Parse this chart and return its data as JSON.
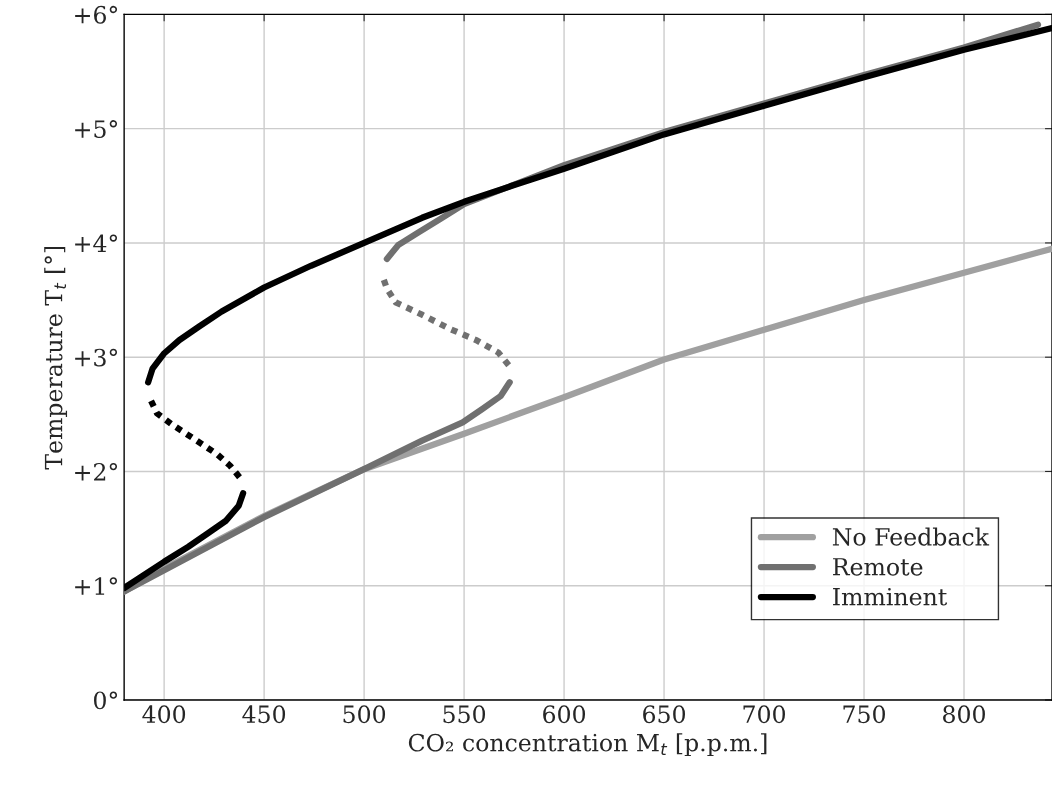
{
  "chart_data": {
    "type": "line",
    "xlabel": "CO₂ concentration M$_{t}$ [p.p.m.]",
    "ylabel": "Temperature T$_{t}$ [°]",
    "xlim": [
      380,
      844
    ],
    "ylim": [
      0,
      6
    ],
    "xticks": [
      400,
      450,
      500,
      550,
      600,
      650,
      700,
      750,
      800
    ],
    "yticks": [
      {
        "value": 0,
        "label": "0°"
      },
      {
        "value": 1,
        "label": "+1°"
      },
      {
        "value": 2,
        "label": "+2°"
      },
      {
        "value": 3,
        "label": "+3°"
      },
      {
        "value": 4,
        "label": "+4°"
      },
      {
        "value": 5,
        "label": "+5°"
      },
      {
        "value": 6,
        "label": "+6°"
      }
    ],
    "grid": true,
    "legend": "bottom right",
    "marker": "none",
    "series": [
      {
        "name": "No Feedback",
        "color": "#a0a0a0",
        "line_style": "solid",
        "x": [
          380,
          400,
          450,
          500,
          550,
          600,
          650,
          700,
          750,
          800,
          844
        ],
        "values": [
          0.95,
          1.15,
          1.61,
          2.02,
          2.33,
          2.65,
          2.98,
          3.24,
          3.5,
          3.74,
          3.95
        ]
      },
      {
        "name": "Remote",
        "color": "#707070",
        "line_style": "solid",
        "x": [
          380,
          450,
          500,
          529,
          549.3,
          559.4,
          568.3,
          572.8,
          null,
          511.4,
          517,
          527,
          538.2,
          550,
          600,
          650,
          700,
          750,
          800,
          837
        ],
        "values": [
          0.95,
          1.6,
          2.02,
          2.27,
          2.43,
          2.55,
          2.66,
          2.78,
          null,
          3.86,
          3.98,
          4.09,
          4.21,
          4.34,
          4.68,
          4.97,
          5.22,
          5.47,
          5.71,
          5.91
        ]
      },
      {
        "color": "#707070",
        "line_style": "dotted",
        "x": [
          572.3,
          567.2,
          556,
          542.6,
          529.2,
          515.8,
          511.4,
          509.2
        ],
        "values": [
          2.93,
          3.04,
          3.15,
          3.25,
          3.37,
          3.48,
          3.6,
          3.71
        ]
      },
      {
        "name": "Imminent",
        "color": "#000000",
        "line_style": "solid",
        "x": [
          380,
          400,
          412,
          422,
          431,
          437.3,
          439.5,
          null,
          392,
          394.2,
          399.8,
          407.6,
          417.6,
          428.8,
          450,
          473.4,
          500,
          529,
          550,
          573.9,
          600,
          650,
          700,
          750,
          800,
          844
        ],
        "values": [
          0.98,
          1.21,
          1.34,
          1.46,
          1.57,
          1.7,
          1.81,
          null,
          2.78,
          2.9,
          3.03,
          3.15,
          3.27,
          3.4,
          3.61,
          3.8,
          4.0,
          4.22,
          4.36,
          4.5,
          4.65,
          4.95,
          5.2,
          5.45,
          5.69,
          5.88
        ]
      },
      {
        "color": "#000000",
        "line_style": "dotted",
        "x": [
          437.7,
          433,
          426.6,
          415.4,
          404,
          396.4,
          392.6
        ],
        "values": [
          1.95,
          2.05,
          2.15,
          2.28,
          2.41,
          2.51,
          2.65
        ]
      }
    ]
  }
}
